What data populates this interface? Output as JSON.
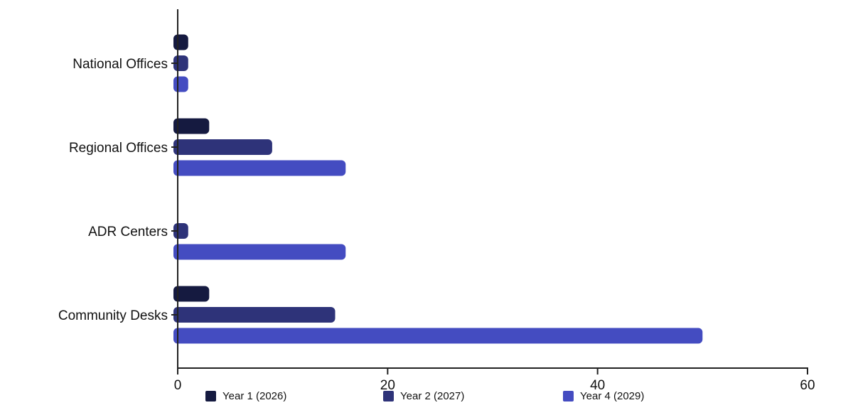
{
  "chart_data": {
    "type": "bar",
    "orientation": "horizontal",
    "categories": [
      "National Offices",
      "Regional Offices",
      "ADR Centers",
      "Community Desks"
    ],
    "series": [
      {
        "name": "Year 1 (2026)",
        "color": "#151a40",
        "values": [
          1,
          3,
          0,
          3
        ]
      },
      {
        "name": "Year 2 (2027)",
        "color": "#2e3379",
        "values": [
          1,
          9,
          1,
          15
        ]
      },
      {
        "name": "Year 4 (2029)",
        "color": "#444cc1",
        "values": [
          1,
          16,
          16,
          50
        ]
      }
    ],
    "title": "",
    "xlabel": "",
    "ylabel": "",
    "xlim": [
      0,
      60
    ],
    "xticks": [
      0,
      20,
      40,
      60
    ],
    "grid": false,
    "legend_position": "bottom"
  }
}
